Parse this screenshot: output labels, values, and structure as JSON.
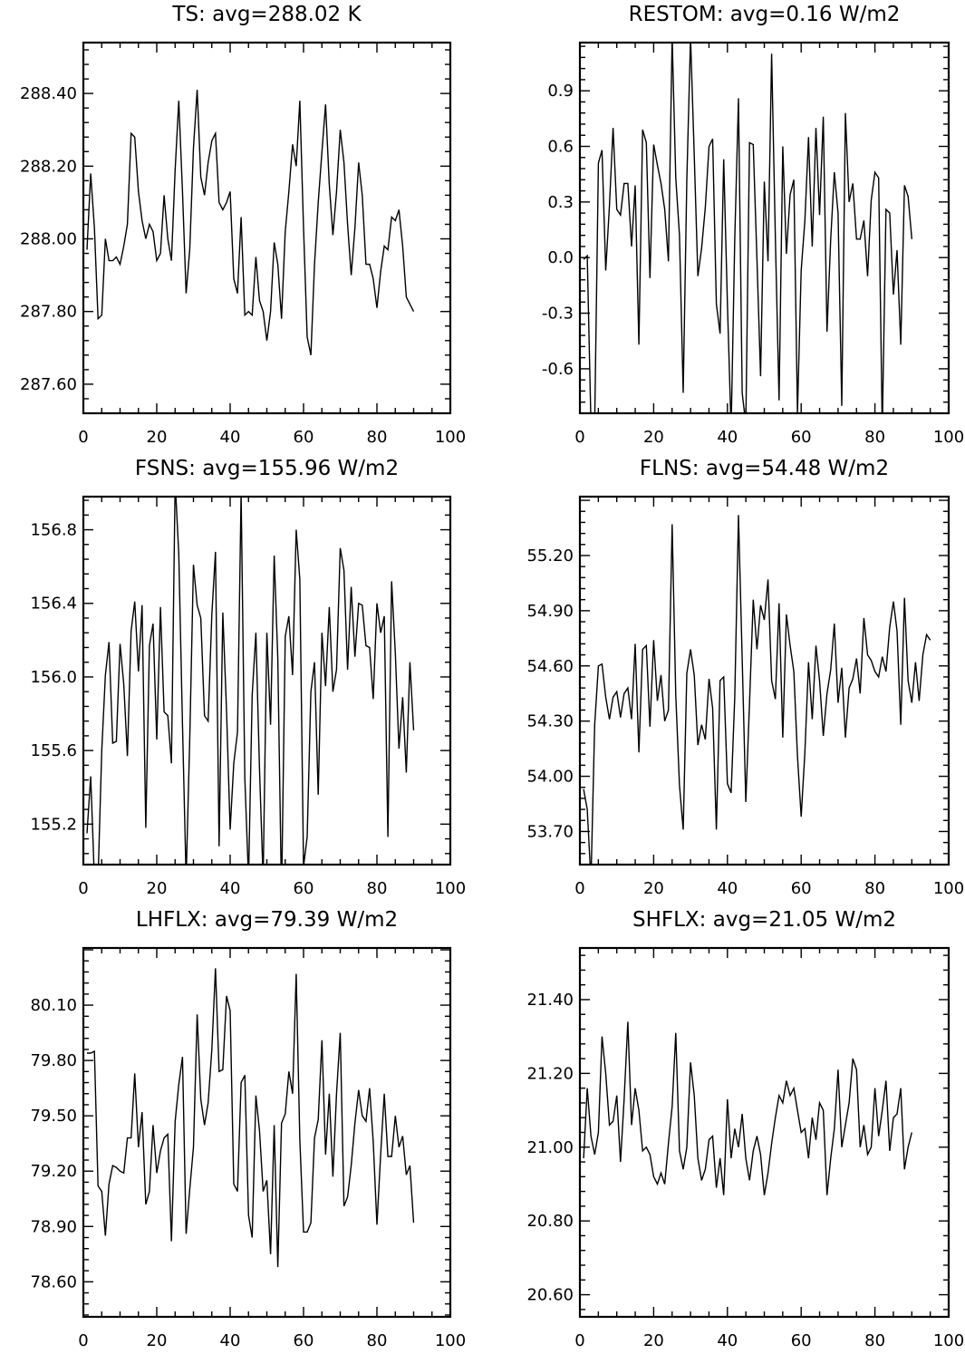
{
  "chart_data": [
    {
      "type": "line",
      "title": "TS: avg=288.02 K",
      "xlim": [
        0,
        100
      ],
      "ylim": [
        287.52,
        288.54
      ],
      "x_ticks": [
        0,
        20,
        40,
        60,
        80,
        100
      ],
      "y_ticks": [
        287.6,
        287.8,
        288.0,
        288.2,
        288.4
      ],
      "y_tick_labels": [
        "287.60",
        "287.80",
        "288.00",
        "288.20",
        "288.40"
      ],
      "series": [
        {
          "values": [
            287.97,
            288.18,
            288.03,
            287.78,
            287.79,
            288.0,
            287.94,
            287.94,
            287.95,
            287.93,
            287.98,
            288.04,
            288.29,
            288.28,
            288.13,
            288.05,
            288.0,
            288.04,
            288.02,
            287.94,
            287.96,
            288.12,
            288.0,
            287.94,
            288.19,
            288.38,
            288.13,
            287.85,
            287.97,
            288.25,
            288.41,
            288.17,
            288.12,
            288.21,
            288.27,
            288.29,
            288.1,
            288.08,
            288.1,
            288.13,
            287.89,
            287.85,
            288.06,
            287.79,
            287.8,
            287.79,
            287.95,
            287.83,
            287.8,
            287.72,
            287.8,
            287.99,
            287.93,
            287.78,
            288.02,
            288.13,
            288.26,
            288.2,
            288.38,
            288.03,
            287.73,
            287.68,
            287.93,
            288.1,
            288.24,
            288.37,
            288.15,
            288.01,
            288.13,
            288.3,
            288.21,
            288.04,
            287.9,
            288.03,
            288.21,
            288.12,
            287.93,
            287.93,
            287.89,
            287.81,
            287.91,
            287.98,
            287.97,
            288.06,
            288.05,
            288.08,
            287.98,
            287.84,
            287.82,
            287.8
          ]
        }
      ]
    },
    {
      "type": "line",
      "title": "RESTOM: avg=0.16 W/m2",
      "xlim": [
        0,
        100
      ],
      "ylim": [
        -0.84,
        1.16
      ],
      "x_ticks": [
        0,
        20,
        40,
        60,
        80,
        100
      ],
      "y_ticks": [
        -0.6,
        -0.3,
        0.0,
        0.3,
        0.6,
        0.9
      ],
      "y_tick_labels": [
        "-0.6",
        "-0.3",
        "0.0",
        "0.3",
        "0.6",
        "0.9"
      ],
      "series": [
        {
          "values": [
            -0.01,
            0.01,
            -0.9,
            -0.9,
            0.51,
            0.58,
            -0.07,
            0.28,
            0.7,
            0.26,
            0.23,
            0.4,
            0.4,
            0.06,
            0.39,
            -0.47,
            0.69,
            0.62,
            -0.11,
            0.61,
            0.5,
            0.4,
            0.26,
            -0.02,
            1.19,
            0.43,
            0.12,
            -0.73,
            0.42,
            1.19,
            0.55,
            -0.1,
            0.05,
            0.27,
            0.6,
            0.64,
            -0.25,
            -0.41,
            0.53,
            -0.25,
            -0.93,
            0.1,
            0.86,
            -0.73,
            -0.9,
            0.62,
            0.61,
            -0.01,
            -0.64,
            0.41,
            -0.02,
            1.1,
            0.11,
            -0.77,
            0.6,
            0.02,
            0.34,
            0.42,
            -0.84,
            -0.07,
            0.2,
            0.65,
            0.06,
            0.7,
            0.23,
            0.76,
            -0.4,
            0.1,
            0.46,
            0.24,
            -0.8,
            0.78,
            0.3,
            0.4,
            0.1,
            0.1,
            0.2,
            -0.1,
            0.31,
            0.46,
            0.43,
            -0.93,
            0.26,
            0.24,
            -0.2,
            0.04,
            -0.47,
            0.39,
            0.33,
            0.1
          ]
        }
      ]
    },
    {
      "type": "line",
      "title": "FSNS: avg=155.96 W/m2",
      "xlim": [
        0,
        100
      ],
      "ylim": [
        154.98,
        156.98
      ],
      "x_ticks": [
        0,
        20,
        40,
        60,
        80,
        100
      ],
      "y_ticks": [
        155.2,
        155.6,
        156.0,
        156.4,
        156.8
      ],
      "y_tick_labels": [
        "155.2",
        "155.6",
        "156.0",
        "156.4",
        "156.8"
      ],
      "series": [
        {
          "values": [
            155.15,
            155.46,
            154.9,
            154.9,
            155.6,
            156.01,
            156.19,
            155.64,
            155.65,
            156.18,
            155.96,
            155.57,
            156.25,
            156.41,
            156.03,
            156.39,
            155.18,
            156.17,
            156.29,
            155.66,
            156.38,
            155.81,
            155.79,
            155.53,
            157.06,
            156.67,
            155.74,
            154.9,
            155.66,
            156.61,
            156.39,
            156.32,
            155.79,
            155.76,
            156.34,
            156.68,
            155.08,
            156.35,
            155.82,
            155.17,
            155.53,
            155.7,
            157.0,
            155.45,
            154.9,
            155.9,
            156.24,
            155.5,
            154.9,
            156.24,
            155.74,
            156.66,
            156.1,
            154.8,
            156.22,
            156.33,
            156.01,
            156.8,
            156.53,
            154.97,
            155.13,
            155.92,
            156.08,
            155.36,
            156.24,
            155.95,
            156.38,
            155.92,
            156.04,
            156.7,
            156.58,
            156.04,
            156.49,
            156.11,
            156.4,
            156.39,
            156.17,
            156.16,
            155.88,
            156.4,
            156.24,
            156.33,
            155.13,
            156.52,
            156.13,
            155.61,
            155.89,
            155.48,
            156.08,
            155.71
          ]
        }
      ]
    },
    {
      "type": "line",
      "title": "FLNS: avg=54.48 W/m2",
      "xlim": [
        0,
        100
      ],
      "ylim": [
        53.52,
        55.52
      ],
      "x_ticks": [
        0,
        20,
        40,
        60,
        80,
        100
      ],
      "y_ticks": [
        53.7,
        54.0,
        54.3,
        54.6,
        54.9,
        55.2
      ],
      "y_tick_labels": [
        "53.70",
        "54.00",
        "54.30",
        "54.60",
        "54.90",
        "55.20"
      ],
      "series": [
        {
          "values": [
            53.93,
            53.82,
            53.43,
            54.28,
            54.6,
            54.61,
            54.43,
            54.31,
            54.43,
            54.46,
            54.32,
            54.45,
            54.48,
            54.31,
            54.72,
            54.13,
            54.69,
            54.71,
            54.27,
            54.74,
            54.41,
            54.55,
            54.3,
            54.36,
            55.37,
            54.44,
            53.95,
            53.71,
            54.56,
            54.69,
            54.55,
            54.17,
            54.28,
            54.2,
            54.53,
            54.37,
            53.71,
            54.52,
            54.54,
            53.96,
            53.91,
            54.43,
            55.42,
            54.64,
            53.86,
            54.4,
            54.96,
            54.69,
            54.93,
            54.85,
            55.07,
            54.52,
            54.42,
            54.94,
            54.21,
            54.88,
            54.71,
            54.57,
            54.11,
            53.78,
            54.13,
            54.62,
            54.31,
            54.71,
            54.52,
            54.22,
            54.45,
            54.58,
            54.83,
            54.4,
            54.59,
            54.21,
            54.48,
            54.53,
            54.64,
            54.45,
            54.86,
            54.66,
            54.63,
            54.57,
            54.54,
            54.65,
            54.57,
            54.81,
            54.95,
            54.79,
            54.28,
            54.97,
            54.52,
            54.4,
            54.62,
            54.41,
            54.66,
            54.77,
            54.74
          ]
        }
      ]
    },
    {
      "type": "line",
      "title": "LHFLX: avg=79.39 W/m2",
      "xlim": [
        0,
        100
      ],
      "ylim": [
        78.41,
        80.41
      ],
      "x_ticks": [
        0,
        20,
        40,
        60,
        80,
        100
      ],
      "y_ticks": [
        78.6,
        78.9,
        79.2,
        79.5,
        79.8,
        80.1
      ],
      "y_tick_labels": [
        "78.60",
        "78.90",
        "79.20",
        "79.50",
        "79.80",
        "80.10"
      ],
      "series": [
        {
          "values": [
            79.84,
            79.84,
            79.85,
            79.12,
            79.09,
            78.85,
            79.13,
            79.23,
            79.22,
            79.2,
            79.19,
            79.38,
            79.38,
            79.73,
            79.33,
            79.52,
            79.02,
            79.09,
            79.45,
            79.19,
            79.31,
            79.38,
            79.4,
            78.82,
            79.47,
            79.67,
            79.82,
            78.86,
            79.1,
            79.33,
            80.05,
            79.59,
            79.45,
            79.57,
            79.86,
            80.3,
            79.74,
            79.75,
            80.15,
            80.07,
            79.13,
            79.09,
            79.68,
            79.72,
            78.96,
            78.84,
            79.61,
            79.42,
            79.09,
            79.15,
            78.75,
            79.45,
            78.68,
            79.46,
            79.51,
            79.74,
            79.62,
            80.27,
            79.37,
            78.87,
            78.87,
            78.92,
            79.38,
            79.48,
            79.91,
            79.29,
            79.62,
            79.17,
            79.62,
            79.95,
            79.01,
            79.06,
            79.23,
            79.46,
            79.64,
            79.5,
            79.47,
            79.65,
            79.36,
            78.91,
            79.29,
            79.62,
            79.28,
            79.28,
            79.5,
            79.33,
            79.39,
            79.18,
            79.23,
            78.92
          ]
        }
      ]
    },
    {
      "type": "line",
      "title": "SHFLX: avg=21.05 W/m2",
      "xlim": [
        0,
        100
      ],
      "ylim": [
        20.54,
        21.54
      ],
      "x_ticks": [
        0,
        20,
        40,
        60,
        80,
        100
      ],
      "y_ticks": [
        20.6,
        20.8,
        21.0,
        21.2,
        21.4
      ],
      "y_tick_labels": [
        "20.60",
        "20.80",
        "21.00",
        "21.20",
        "21.40"
      ],
      "series": [
        {
          "values": [
            20.97,
            21.16,
            21.03,
            20.98,
            21.04,
            21.3,
            21.2,
            21.06,
            21.07,
            21.14,
            20.96,
            21.13,
            21.34,
            21.06,
            21.16,
            21.1,
            20.99,
            21.0,
            20.98,
            20.92,
            20.9,
            20.93,
            20.9,
            21.01,
            21.11,
            21.31,
            20.99,
            20.94,
            21.0,
            21.23,
            21.14,
            20.97,
            20.91,
            20.94,
            21.02,
            21.03,
            20.89,
            20.97,
            20.87,
            21.13,
            20.97,
            21.05,
            21.0,
            21.09,
            20.97,
            20.91,
            20.99,
            21.03,
            20.98,
            20.87,
            20.93,
            21.01,
            21.08,
            21.14,
            21.12,
            21.18,
            21.14,
            21.16,
            21.1,
            21.04,
            21.05,
            20.97,
            21.08,
            21.02,
            21.12,
            21.1,
            20.87,
            20.97,
            21.05,
            21.21,
            21.0,
            21.06,
            21.12,
            21.24,
            21.21,
            21.0,
            21.06,
            20.98,
            21.0,
            21.16,
            21.03,
            21.1,
            21.18,
            20.99,
            21.08,
            21.09,
            21.16,
            20.94,
            21.0,
            21.04
          ]
        }
      ]
    }
  ]
}
